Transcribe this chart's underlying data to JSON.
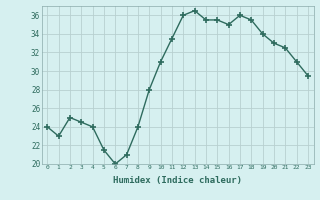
{
  "x": [
    0,
    1,
    2,
    3,
    4,
    5,
    6,
    7,
    8,
    9,
    10,
    11,
    12,
    13,
    14,
    15,
    16,
    17,
    18,
    19,
    20,
    21,
    22,
    23
  ],
  "y": [
    24.0,
    23.0,
    25.0,
    24.5,
    24.0,
    21.5,
    20.0,
    21.0,
    24.0,
    28.0,
    31.0,
    33.5,
    36.0,
    36.5,
    35.5,
    35.5,
    35.0,
    36.0,
    35.5,
    34.0,
    33.0,
    32.5,
    31.0,
    29.5
  ],
  "line_color": "#2e6b5e",
  "marker": "+",
  "marker_size": 4,
  "bg_color": "#d6f0f0",
  "grid_color": "#b8d0d0",
  "xlabel": "Humidex (Indice chaleur)",
  "xlabel_color": "#2e6b5e",
  "tick_color": "#2e6b5e",
  "ylim": [
    20,
    37
  ],
  "xlim": [
    -0.5,
    23.5
  ],
  "yticks": [
    20,
    22,
    24,
    26,
    28,
    30,
    32,
    34,
    36
  ],
  "xticks": [
    0,
    1,
    2,
    3,
    4,
    5,
    6,
    7,
    8,
    9,
    10,
    11,
    12,
    13,
    14,
    15,
    16,
    17,
    18,
    19,
    20,
    21,
    22,
    23
  ],
  "xtick_labels": [
    "0",
    "1",
    "2",
    "3",
    "4",
    "5",
    "6",
    "7",
    "8",
    "9",
    "10",
    "11",
    "12",
    "13",
    "14",
    "15",
    "16",
    "17",
    "18",
    "19",
    "20",
    "21",
    "22",
    "23"
  ],
  "line_width": 1.0
}
